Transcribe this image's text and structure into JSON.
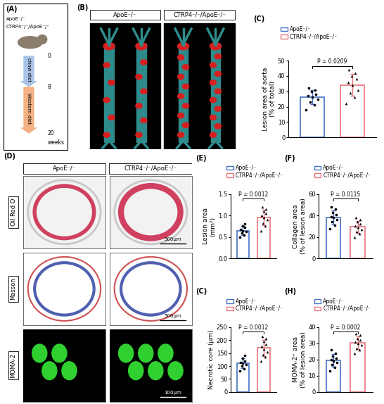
{
  "panel_A": {
    "panel": "(A)",
    "groups": [
      "ApoE⁻/⁻",
      "CTRP4⁻/⁻/ApoE⁻/⁻"
    ],
    "stages": [
      {
        "name": "chow diet",
        "start": 0,
        "end": 8,
        "color": "#a9c4e8"
      },
      {
        "name": "Western diet",
        "start": 8,
        "end": 20,
        "color": "#f4b183"
      }
    ],
    "unit": "weeks"
  },
  "panel_B": {
    "panel": "(B)",
    "columns": [
      "ApoE⁻/⁻",
      "CTRP4⁻/⁻/ApoE⁻/⁻"
    ]
  },
  "panel_D": {
    "panel": "(D)",
    "columns": [
      "ApoE⁻/⁻",
      "CTRP4⁻/⁻/ApoE⁻/⁻"
    ],
    "rows": [
      {
        "stain": "Oil Red O",
        "scale_bar": "500μm"
      },
      {
        "stain": "Masson",
        "scale_bar": "500μm"
      },
      {
        "stain": "MOMA-2",
        "scale_bar": "100μm"
      }
    ]
  },
  "chart_data": [
    {
      "panel": "(C)",
      "type": "bar",
      "y_label": "Lesion area of aorta\n(% of total)",
      "ylim": [
        0,
        50
      ],
      "yticks": [
        0,
        10,
        20,
        30,
        40,
        50
      ],
      "legend": "upper left",
      "tick_labels": "y",
      "annotation": "P = 0.0209",
      "series": [
        {
          "name": "ApoE⁻/⁻",
          "color": "#4472c4",
          "marker": "circle",
          "values": [
            26.1
          ],
          "errors": [
            4.6
          ],
          "points": [
            18,
            21,
            23,
            25,
            26,
            27,
            28,
            30,
            31,
            32
          ]
        },
        {
          "name": "CTRP4⁻/⁻/ApoE⁻/⁻",
          "color": "#e8737b",
          "marker": "triangle",
          "values": [
            34.2
          ],
          "errors": [
            7.0
          ],
          "points": [
            22,
            26,
            29,
            31,
            34,
            36,
            38,
            40,
            42,
            44
          ]
        }
      ]
    },
    {
      "panel": "(E)",
      "type": "bar",
      "y_label": "Lesion area\n(mm²)",
      "ylim": [
        0.0,
        1.5
      ],
      "yticks": [
        0.0,
        0.5,
        1.0,
        1.5
      ],
      "legend": "upper left",
      "tick_labels": "y",
      "annotation": "P = 0.0012",
      "series": [
        {
          "name": "ApoE⁻/⁻",
          "color": "#4472c4",
          "marker": "circle",
          "values": [
            0.65
          ],
          "errors": [
            0.1
          ],
          "points": [
            0.5,
            0.55,
            0.6,
            0.62,
            0.65,
            0.68,
            0.72,
            0.75,
            0.8
          ]
        },
        {
          "name": "CTRP4⁻/⁻/ApoE⁻/⁻",
          "color": "#e8737b",
          "marker": "triangle",
          "values": [
            0.96
          ],
          "errors": [
            0.18
          ],
          "points": [
            0.65,
            0.75,
            0.82,
            0.9,
            0.95,
            1.0,
            1.05,
            1.1,
            1.15,
            1.2
          ]
        }
      ]
    },
    {
      "panel": "(F)",
      "type": "bar",
      "y_label": "Collagen area\n(% of lesion area)",
      "ylim": [
        0,
        60
      ],
      "yticks": [
        0,
        20,
        40,
        60
      ],
      "legend": "upper left",
      "tick_labels": "y",
      "annotation": "P = 0.0115",
      "series": [
        {
          "name": "ApoE⁻/⁻",
          "color": "#4472c4",
          "marker": "circle",
          "values": [
            38.4
          ],
          "errors": [
            6.5
          ],
          "points": [
            28,
            31,
            34,
            36,
            38,
            39,
            41,
            43,
            46,
            48
          ]
        },
        {
          "name": "CTRP4⁻/⁻/ApoE⁻/⁻",
          "color": "#e8737b",
          "marker": "triangle",
          "values": [
            29.4
          ],
          "errors": [
            5.7
          ],
          "points": [
            20,
            23,
            25,
            27,
            29,
            30,
            32,
            34,
            36,
            38
          ]
        }
      ]
    },
    {
      "panel": "(C)",
      "type": "bar",
      "y_label": "Necrotic core (μm)",
      "ylim": [
        0,
        250
      ],
      "yticks": [
        0,
        50,
        100,
        150,
        200,
        250
      ],
      "legend": "upper left",
      "tick_labels": "y",
      "annotation": "P = 0.0012",
      "series": [
        {
          "name": "ApoE⁻/⁻",
          "color": "#4472c4",
          "marker": "circle",
          "values": [
            110
          ],
          "errors": [
            19
          ],
          "points": [
            80,
            90,
            100,
            105,
            110,
            115,
            120,
            130,
            140
          ]
        },
        {
          "name": "CTRP4⁻/⁻/ApoE⁻/⁻",
          "color": "#e8737b",
          "marker": "triangle",
          "values": [
            170
          ],
          "errors": [
            31
          ],
          "points": [
            120,
            135,
            145,
            155,
            165,
            175,
            185,
            195,
            205,
            215
          ]
        }
      ]
    },
    {
      "panel": "(H)",
      "type": "bar",
      "y_label": "MOMA-2⁺ area\n(% of lesion area)",
      "ylim": [
        0,
        40
      ],
      "yticks": [
        0,
        10,
        20,
        30,
        40
      ],
      "legend": "upper left",
      "tick_labels": "y",
      "annotation": "P = 0.0002",
      "series": [
        {
          "name": "ApoE⁻/⁻",
          "color": "#4472c4",
          "marker": "circle",
          "values": [
            19.5
          ],
          "errors": [
            4.0
          ],
          "points": [
            13,
            15,
            17,
            18,
            19,
            20,
            21,
            22,
            24,
            26
          ]
        },
        {
          "name": "CTRP4⁻/⁻/ApoE⁻/⁻",
          "color": "#e8737b",
          "marker": "triangle",
          "values": [
            30.5
          ],
          "errors": [
            3.9
          ],
          "points": [
            24,
            26,
            27,
            29,
            30,
            31,
            32,
            33,
            35,
            36
          ]
        }
      ]
    }
  ]
}
